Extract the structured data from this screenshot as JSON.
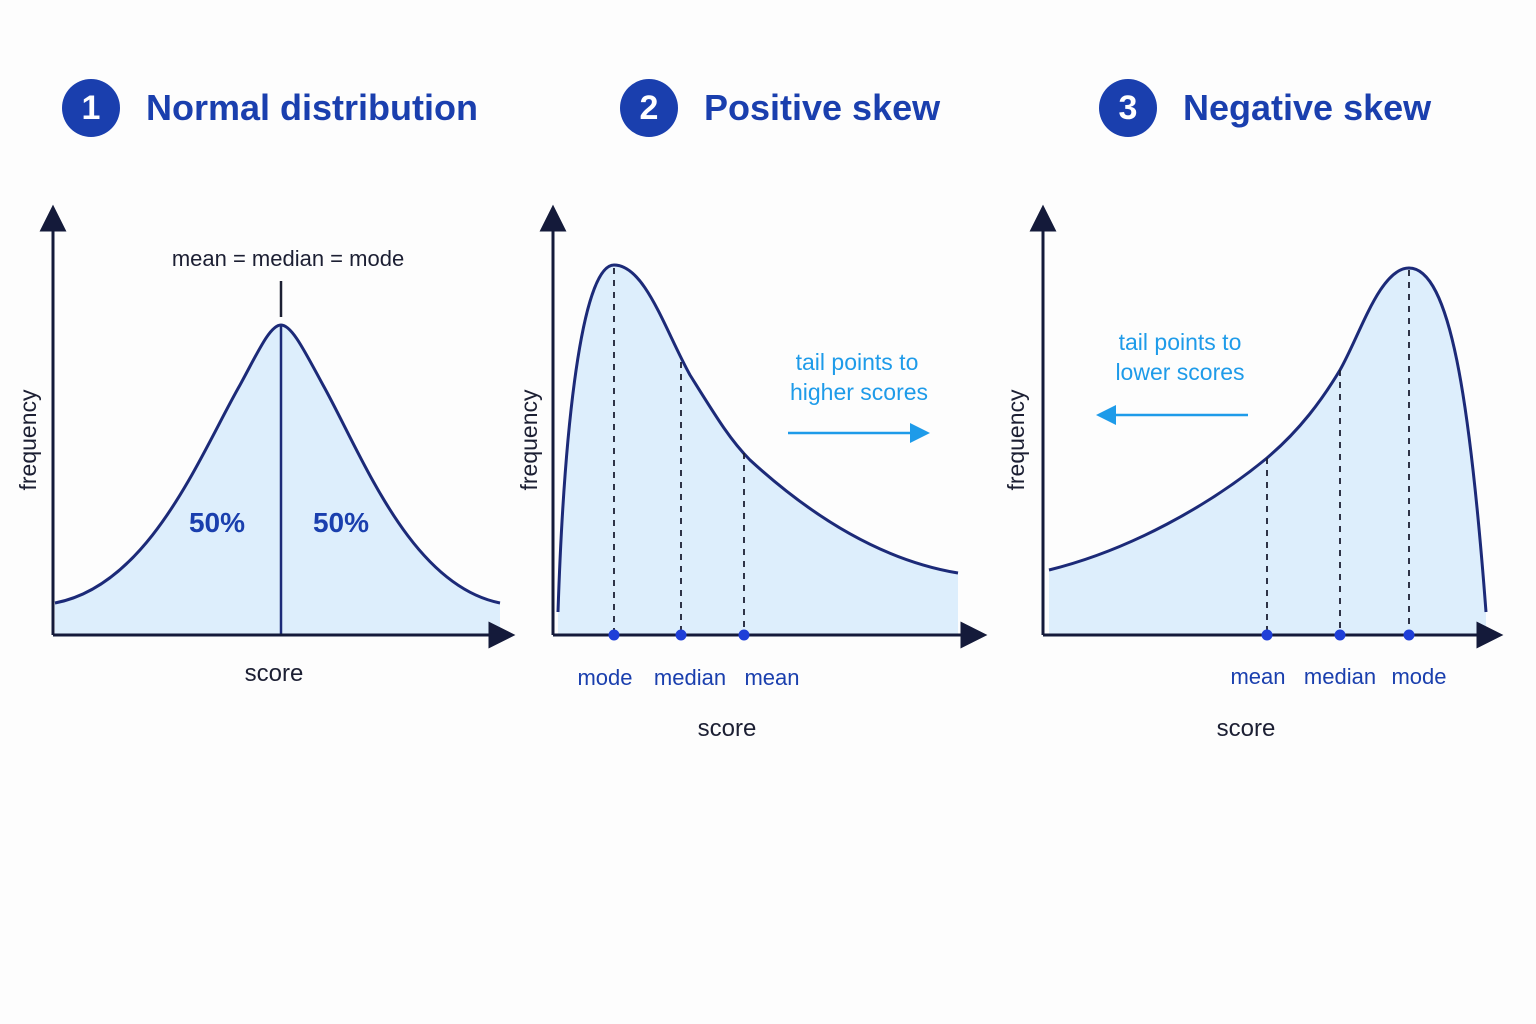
{
  "panels": [
    {
      "number": "1",
      "title": "Normal distribution",
      "xlabel": "score",
      "ylabel": "frequency",
      "center_label": "mean = median = mode",
      "left_pct": "50%",
      "right_pct": "50%"
    },
    {
      "number": "2",
      "title": "Positive skew",
      "xlabel": "score",
      "ylabel": "frequency",
      "measures": [
        "mode",
        "median",
        "mean"
      ],
      "tail_note": [
        "tail points to",
        "higher scores"
      ],
      "tail_direction": "right"
    },
    {
      "number": "3",
      "title": "Negative skew",
      "xlabel": "score",
      "ylabel": "frequency",
      "measures": [
        "mean",
        "median",
        "mode"
      ],
      "tail_note": [
        "tail points to",
        "lower scores"
      ],
      "tail_direction": "left"
    }
  ],
  "colors": {
    "navy": "#1a3fae",
    "curve": "#1c2a78",
    "axis": "#141a3a",
    "fill": "#ddeefc",
    "tail_arrow": "#1e9be9",
    "marker": "#1f3fd8"
  }
}
